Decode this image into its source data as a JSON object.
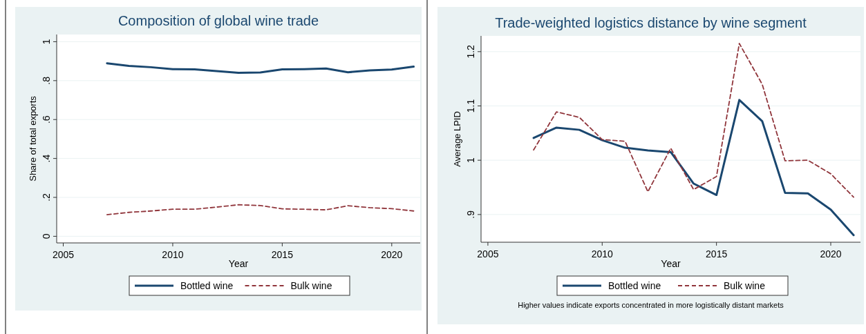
{
  "chart_data": [
    {
      "type": "line",
      "title": "Composition of global wine trade",
      "xlabel": "Year",
      "ylabel": "Share of total exports",
      "x": [
        2007,
        2008,
        2009,
        2010,
        2011,
        2012,
        2013,
        2014,
        2015,
        2016,
        2017,
        2018,
        2019,
        2020,
        2021
      ],
      "xlim": [
        2004.7,
        2021.3
      ],
      "xticks": [
        2005,
        2010,
        2015,
        2020
      ],
      "ylim": [
        -0.034,
        1.037
      ],
      "yticks": [
        {
          "value": 0,
          "label": "0"
        },
        {
          "value": 0.2,
          "label": ".2"
        },
        {
          "value": 0.4,
          "label": ".4"
        },
        {
          "value": 0.6,
          "label": ".6"
        },
        {
          "value": 0.8,
          "label": ".8"
        },
        {
          "value": 1,
          "label": "1"
        }
      ],
      "grid": "y",
      "legend": "bottom",
      "marker": "none",
      "series": [
        {
          "name": "Bottled wine",
          "color": "#1a476f",
          "line_style": "solid",
          "values": [
            0.889,
            0.876,
            0.869,
            0.859,
            0.858,
            0.849,
            0.84,
            0.842,
            0.858,
            0.859,
            0.862,
            0.843,
            0.853,
            0.857,
            0.872
          ]
        },
        {
          "name": "Bulk wine",
          "color": "#90353b",
          "line_style": "dashed",
          "values": [
            0.111,
            0.123,
            0.13,
            0.139,
            0.139,
            0.15,
            0.162,
            0.158,
            0.141,
            0.139,
            0.136,
            0.157,
            0.147,
            0.142,
            0.13
          ]
        }
      ]
    },
    {
      "type": "line",
      "title": "Trade-weighted logistics distance by wine segment",
      "xlabel": "Year",
      "ylabel": "Average LPID",
      "x": [
        2007,
        2008,
        2009,
        2010,
        2011,
        2012,
        2013,
        2014,
        2015,
        2016,
        2017,
        2018,
        2019,
        2020,
        2021
      ],
      "xlim": [
        2004.7,
        2021.3
      ],
      "xticks": [
        2005,
        2010,
        2015,
        2020
      ],
      "ylim": [
        0.849,
        1.229
      ],
      "yticks": [
        {
          "value": 0.9,
          "label": ".9"
        },
        1,
        1.1,
        1.2
      ],
      "grid": "y",
      "legend": "bottom",
      "marker": "none",
      "annotations": [
        "Higher values indicate exports concentrated in more logistically distant markets"
      ],
      "series": [
        {
          "name": "Bottled wine",
          "color": "#1a476f",
          "line_style": "solid",
          "values": [
            1.041,
            1.06,
            1.056,
            1.037,
            1.023,
            1.018,
            1.015,
            0.957,
            0.936,
            1.111,
            1.072,
            0.94,
            0.939,
            0.909,
            0.862
          ]
        },
        {
          "name": "Bulk wine",
          "color": "#90353b",
          "line_style": "dashed",
          "values": [
            1.019,
            1.089,
            1.079,
            1.038,
            1.035,
            0.942,
            1.022,
            0.946,
            0.97,
            1.215,
            1.14,
            0.999,
            1.0,
            0.975,
            0.932
          ]
        }
      ]
    }
  ]
}
